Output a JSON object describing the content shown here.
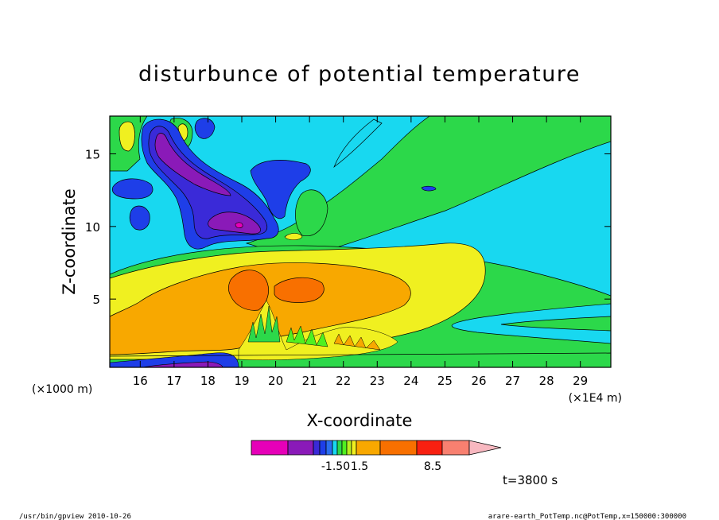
{
  "chart_data": {
    "type": "heatmap",
    "title": "disturbunce of potential temperature",
    "xlabel": "X-coordinate",
    "ylabel": "Z-coordinate",
    "x_unit_left": "(×1000 m)",
    "x_unit_right": "(×1E4 m)",
    "x_ticks": [
      "16",
      "17",
      "18",
      "19",
      "20",
      "21",
      "22",
      "23",
      "24",
      "25",
      "26",
      "27",
      "28",
      "29"
    ],
    "x_tick_values": [
      16,
      17,
      18,
      19,
      20,
      21,
      22,
      23,
      24,
      25,
      26,
      27,
      28,
      29
    ],
    "xlim": [
      15.1,
      29.9
    ],
    "y_ticks": [
      "5",
      "10",
      "15"
    ],
    "y_tick_values": [
      5,
      10,
      15
    ],
    "ylim": [
      0.3,
      17.6
    ],
    "time_label": "t=3800 s",
    "colorbar": {
      "colors": [
        "#e600b8",
        "#8a1ab8",
        "#3a2ad8",
        "#1e3ee8",
        "#2a6ef0",
        "#18d8f0",
        "#2cd84a",
        "#50f020",
        "#b8f020",
        "#f0f020",
        "#f8a800",
        "#f87000",
        "#f82010",
        "#f88070",
        "#f8b8c0"
      ],
      "labels": [
        "-1.50",
        "1.5",
        "8.5"
      ],
      "label_after_index": [
        6,
        8,
        13
      ]
    },
    "footer_left": "/usr/bin/gpview   2010-10-26",
    "footer_right": "arare-earth_PotTemp.nc@PotTemp,x=150000:300000"
  }
}
